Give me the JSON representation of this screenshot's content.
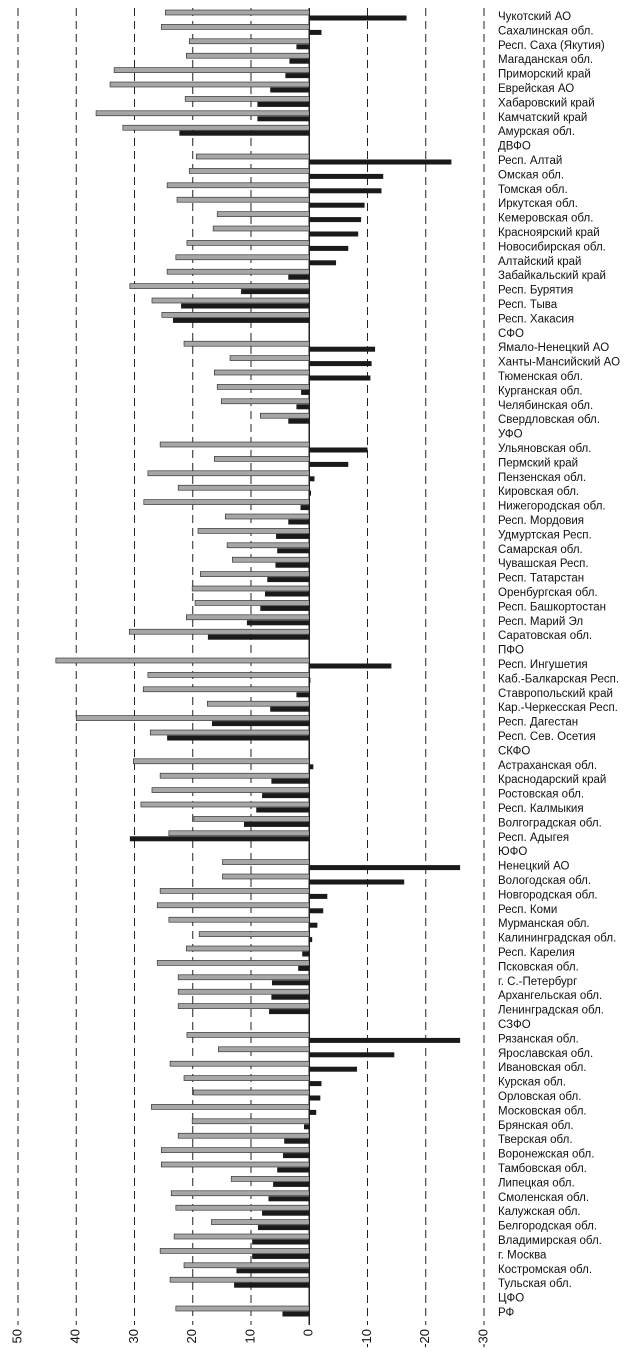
{
  "chart_data": {
    "type": "hbar",
    "categories": [
      "Чукотский АО",
      "Сахалинская обл.",
      "Респ. Саха (Якутия)",
      "Магаданская обл.",
      "Приморский край",
      "Еврейская АО",
      "Хабаровский край",
      "Камчатский край",
      "Амурская обл.",
      "ДВФО",
      "Респ. Алтай",
      "Омская обл.",
      "Томская обл.",
      "Иркутская обл.",
      "Кемеровская обл.",
      "Красноярский край",
      "Новосибирская обл.",
      "Алтайский край",
      "Забайкальский край",
      "Респ. Бурятия",
      "Респ. Тыва",
      "Респ. Хакасия",
      "СФО",
      "Ямало-Ненецкий АО",
      "Ханты-Мансийский АО",
      "Тюменская обл.",
      "Курганская обл.",
      "Челябинская обл.",
      "Свердловская обл.",
      "УФО",
      "Ульяновская обл.",
      "Пермский край",
      "Пензенская обл.",
      "Кировская обл.",
      "Нижегородская обл.",
      "Респ. Мордовия",
      "Удмуртская Респ.",
      "Самарская обл.",
      "Чувашская Респ.",
      "Респ. Татарстан",
      "Оренбургская обл.",
      "Респ. Башкортостан",
      "Респ. Марий Эл",
      "Саратовская обл.",
      "ПФО",
      "Респ. Ингушетия",
      "Каб.-Балкарская Респ.",
      "Ставропольский край",
      "Кар.-Черкесская Респ.",
      "Респ. Дагестан",
      "Респ. Сев. Осетия",
      "СКФО",
      "Астраханская обл.",
      "Краснодарский край",
      "Ростовская обл.",
      "Респ. Калмыкия",
      "Волгоградская обл.",
      "Респ. Адыгея",
      "ЮФО",
      "Ненецкий АО",
      "Вологодская обл.",
      "Новгородская обл.",
      "Респ. Коми",
      "Мурманская обл.",
      "Калининградская обл.",
      "Респ. Карелия",
      "Псковская обл.",
      "г. С.-Петербург",
      "Архангельская обл.",
      "Ленинградская обл.",
      "СЗФО",
      "Рязанская обл.",
      "Ярославская обл.",
      "Ивановская обл.",
      "Курская обл.",
      "Орловская обл.",
      "Московская обл.",
      "Брянская обл.",
      "Тверская обл.",
      "Воронежская обл.",
      "Тамбовская обл.",
      "Липецкая обл.",
      "Смоленская обл.",
      "Калужская обл.",
      "Белгородская обл.",
      "Владимирская обл.",
      "г. Москва",
      "Костромская обл.",
      "Тульская обл.",
      "ЦФО",
      "РФ"
    ],
    "series": [
      {
        "color": "#a6a6a6",
        "values": [
          24.7,
          25.4,
          20.6,
          21.1,
          33.5,
          34.2,
          21.3,
          36.6,
          32.0,
          null,
          19.4,
          20.6,
          24.4,
          22.7,
          15.8,
          16.5,
          21.0,
          22.9,
          24.4,
          30.8,
          27.0,
          25.3,
          null,
          21.5,
          13.6,
          16.3,
          15.8,
          15.1,
          8.4,
          null,
          25.6,
          16.3,
          27.7,
          22.5,
          28.4,
          14.4,
          19.1,
          14.1,
          13.2,
          18.7,
          20.1,
          19.6,
          21.1,
          30.9,
          null,
          43.5,
          27.7,
          28.5,
          17.5,
          40.0,
          27.3,
          null,
          30.2,
          25.6,
          27.0,
          28.9,
          19.8,
          24.1,
          null,
          14.9,
          14.9,
          25.6,
          26.1,
          24.1,
          18.9,
          21.1,
          26.1,
          22.5,
          22.5,
          22.5,
          null,
          21.0,
          15.6,
          23.9,
          21.5,
          19.9,
          27.1,
          20.1,
          22.5,
          25.4,
          25.4,
          13.4,
          23.7,
          22.9,
          16.8,
          23.2,
          25.6,
          21.5,
          23.9,
          null,
          22.9
        ]
      },
      {
        "color": "#1a1a1a",
        "values": [
          -16.7,
          -2.1,
          2.2,
          3.4,
          4.1,
          6.7,
          8.9,
          8.9,
          22.3,
          null,
          -24.4,
          -12.7,
          -12.4,
          -9.5,
          -8.9,
          -8.4,
          -6.7,
          -4.6,
          3.6,
          11.7,
          22.0,
          23.4,
          null,
          -11.3,
          -10.7,
          -10.5,
          1.4,
          2.2,
          3.6,
          null,
          -10.0,
          -6.7,
          -0.9,
          -0.3,
          1.5,
          3.6,
          5.7,
          5.5,
          5.8,
          7.2,
          7.6,
          8.4,
          10.7,
          17.4,
          null,
          -14.1,
          -0.2,
          2.2,
          6.7,
          16.7,
          24.4,
          null,
          -0.7,
          6.5,
          8.1,
          9.1,
          11.2,
          30.8,
          null,
          -25.9,
          -16.3,
          -3.1,
          -2.4,
          -1.4,
          -0.5,
          1.2,
          1.9,
          6.4,
          6.5,
          6.9,
          null,
          -25.9,
          -14.6,
          -8.2,
          -2.1,
          -1.9,
          -1.2,
          0.9,
          4.3,
          4.5,
          5.5,
          6.2,
          7.0,
          8.1,
          8.8,
          9.8,
          9.8,
          12.5,
          12.9,
          null,
          4.6
        ]
      }
    ],
    "xlim": [
      50,
      -30
    ],
    "xticks": [
      50,
      40,
      30,
      20,
      10,
      0,
      -10,
      -20,
      -30
    ],
    "grid": true
  }
}
